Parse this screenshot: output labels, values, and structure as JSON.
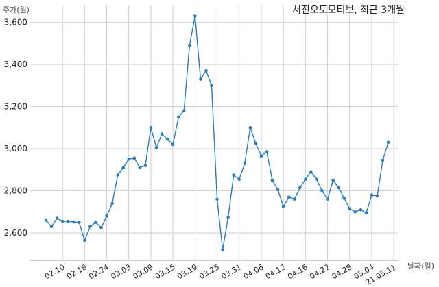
{
  "chart_data": {
    "type": "line",
    "title": "서진오토모티브, 최근 3개월",
    "xlabel": "날짜(일)",
    "ylabel": "주가(원)",
    "ylim": [
      2470,
      3680
    ],
    "yticks": [
      2600,
      2800,
      3000,
      3200,
      3400,
      3600
    ],
    "ytick_labels": [
      "2,600",
      "2,800",
      "3,000",
      "3,200",
      "3,400",
      "3,600"
    ],
    "grid": true,
    "line_color": "#2b7bb9",
    "tick_labels": [
      {
        "label": "02.10",
        "index": 3
      },
      {
        "label": "02.18",
        "index": 7
      },
      {
        "label": "02.24",
        "index": 11
      },
      {
        "label": "03.03",
        "index": 15
      },
      {
        "label": "03.09",
        "index": 19
      },
      {
        "label": "03.15",
        "index": 23
      },
      {
        "label": "03.19",
        "index": 27
      },
      {
        "label": "03.25",
        "index": 31
      },
      {
        "label": "03.31",
        "index": 35
      },
      {
        "label": "04.06",
        "index": 39
      },
      {
        "label": "04.12",
        "index": 43
      },
      {
        "label": "04.16",
        "index": 47
      },
      {
        "label": "04.22",
        "index": 51
      },
      {
        "label": "04.28",
        "index": 55
      },
      {
        "label": "05.04",
        "index": 59
      },
      {
        "label": "21.05.11",
        "index": 63
      }
    ],
    "values": [
      2660,
      2630,
      2670,
      2655,
      2655,
      2652,
      2650,
      2565,
      2630,
      2650,
      2625,
      2680,
      2740,
      2875,
      2910,
      2950,
      2955,
      2910,
      2920,
      3100,
      3005,
      3070,
      3045,
      3020,
      3150,
      3180,
      3490,
      3630,
      3330,
      3370,
      3300,
      2760,
      2520,
      2675,
      2875,
      2855,
      2930,
      3100,
      3025,
      2965,
      2985,
      2850,
      2805,
      2725,
      2770,
      2760,
      2815,
      2855,
      2890,
      2855,
      2800,
      2760,
      2850,
      2815,
      2765,
      2715,
      2700,
      2710,
      2695,
      2780,
      2775,
      2945,
      3030
    ]
  }
}
